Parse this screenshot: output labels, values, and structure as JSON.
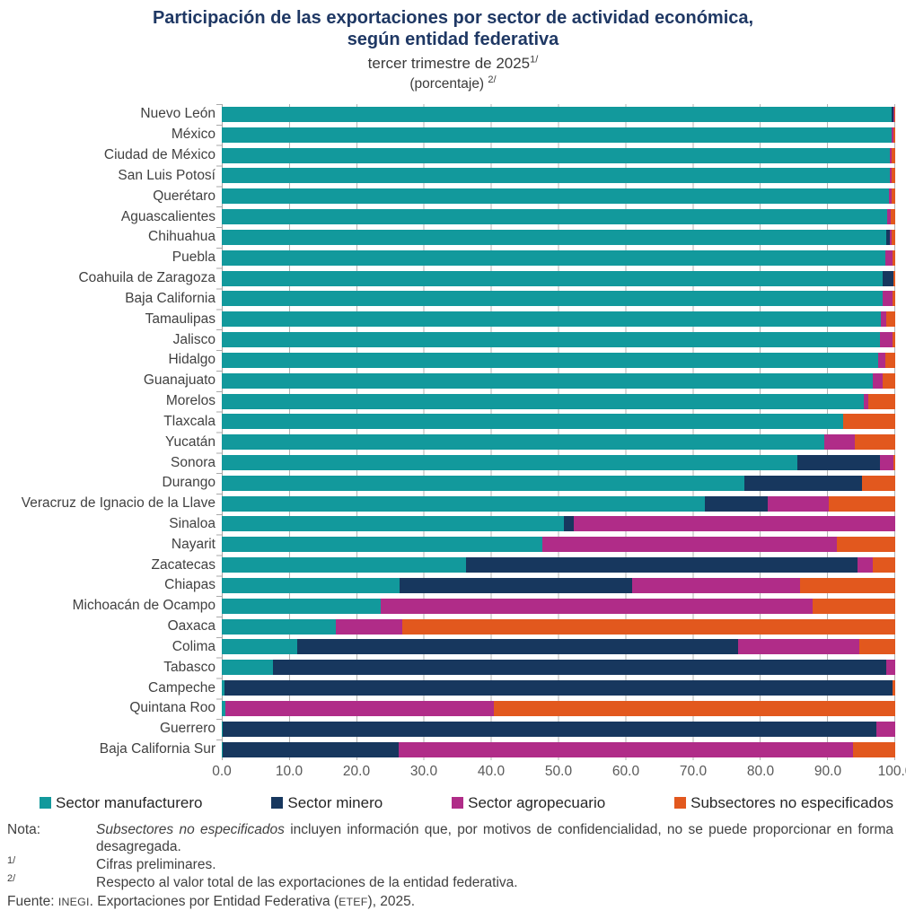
{
  "title": {
    "line1": "Participación de las exportaciones por sector de actividad económica,",
    "line2": "según entidad federativa",
    "subtitle": "tercer trimestre de 2025",
    "subtitle_sup": "1/",
    "unit": "(porcentaje)",
    "unit_sup": "2/"
  },
  "chart_data": {
    "type": "bar",
    "orientation": "horizontal",
    "stacked": true,
    "xlim": [
      0,
      100
    ],
    "x_ticks": [
      "0.0",
      "10.0",
      "20.0",
      "30.0",
      "40.0",
      "50.0",
      "60.0",
      "70.0",
      "80.0",
      "90.0",
      "100.0"
    ],
    "grid": "vertical tick marks at 10-unit intervals, light gray",
    "legend_position": "bottom",
    "categories": [
      "Nuevo León",
      "México",
      "Ciudad de México",
      "San Luis Potosí",
      "Querétaro",
      "Aguascalientes",
      "Chihuahua",
      "Puebla",
      "Coahuila de Zaragoza",
      "Baja California",
      "Tamaulipas",
      "Jalisco",
      "Hidalgo",
      "Guanajuato",
      "Morelos",
      "Tlaxcala",
      "Yucatán",
      "Sonora",
      "Durango",
      "Veracruz de Ignacio de la Llave",
      "Sinaloa",
      "Nayarit",
      "Zacatecas",
      "Chiapas",
      "Michoacán de Ocampo",
      "Oaxaca",
      "Colima",
      "Tabasco",
      "Campeche",
      "Quintana Roo",
      "Guerrero",
      "Baja California Sur"
    ],
    "series": [
      {
        "name": "Sector manufacturero",
        "color": "#12999C",
        "values": [
          99.4,
          99.5,
          99.2,
          99.2,
          99.0,
          98.8,
          98.7,
          98.5,
          98.1,
          98.1,
          97.9,
          97.7,
          97.4,
          96.6,
          95.3,
          92.3,
          89.5,
          85.5,
          77.6,
          71.7,
          50.8,
          47.6,
          36.2,
          26.4,
          23.6,
          16.9,
          11.2,
          7.6,
          0.4,
          0.5,
          0.1,
          0.1
        ]
      },
      {
        "name": "Sector minero",
        "color": "#17375E",
        "values": [
          0.3,
          0,
          0,
          0,
          0,
          0,
          0.5,
          0,
          1.6,
          0,
          0,
          0,
          0,
          0,
          0,
          0,
          0,
          12.2,
          17.4,
          9.4,
          1.4,
          0,
          58.2,
          34.5,
          0,
          0,
          65.4,
          91.0,
          99.2,
          0,
          97.1,
          26.2
        ]
      },
      {
        "name": "Sector agropecuario",
        "color": "#B02C88",
        "values": [
          0.1,
          0.2,
          0.3,
          0.3,
          0.4,
          0.5,
          0.2,
          1.1,
          0,
          1.5,
          0.7,
          1.9,
          1.1,
          1.5,
          0.7,
          0,
          4.5,
          2.0,
          0,
          9.1,
          47.8,
          43.7,
          2.2,
          25.0,
          64.1,
          9.9,
          18.1,
          1.4,
          0,
          39.9,
          2.8,
          67.4
        ]
      },
      {
        "name": "Subsectores no especificados",
        "color": "#E2581E",
        "values": [
          0.2,
          0.3,
          0.5,
          0.5,
          0.6,
          0.7,
          0.6,
          0.4,
          0.3,
          0.4,
          1.4,
          0.4,
          1.5,
          1.9,
          4.0,
          7.7,
          6.0,
          0.3,
          5.0,
          9.8,
          0,
          8.7,
          3.4,
          14.1,
          12.3,
          73.2,
          5.3,
          0,
          0.4,
          59.6,
          0,
          6.3
        ]
      }
    ]
  },
  "notes": {
    "nota_label": "Nota:",
    "nota_italic": "Subsectores no especificados",
    "nota_rest": " incluyen información que, por motivos de confidencialidad, no se puede proporcionar en forma desagregada.",
    "fn1_marker": "1/",
    "fn1_text": "Cifras preliminares.",
    "fn2_marker": "2/",
    "fn2_text": "Respecto al valor total de las exportaciones de la entidad federativa.",
    "fuente_label": "Fuente:",
    "fuente_segments": [
      {
        "text": "INEGI",
        "caps": true
      },
      {
        "text": ". Exportaciones por Entidad Federativa (",
        "caps": false
      },
      {
        "text": "ETEF",
        "caps": true
      },
      {
        "text": "), 2025.",
        "caps": false
      }
    ]
  }
}
